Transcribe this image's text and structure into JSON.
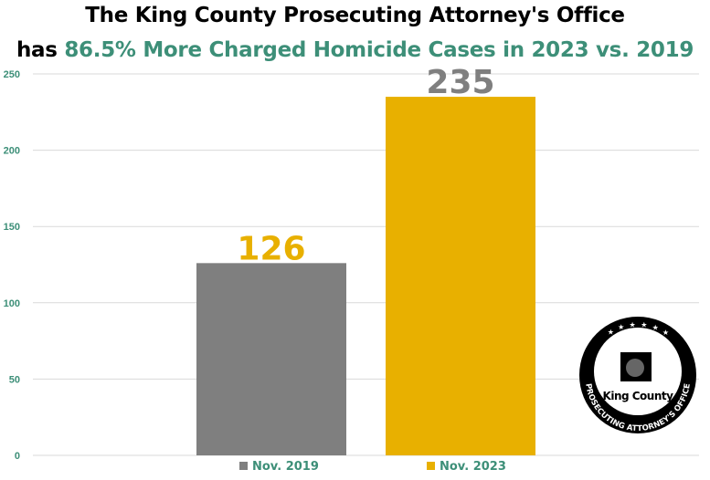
{
  "chart_data": {
    "type": "bar",
    "title_line1": "The King County Prosecuting Attorney's Office",
    "title_line2_prefix": "has ",
    "title_line2_highlight": "86.5% More Charged Homicide Cases in 2023 vs. 2019",
    "xlabel": "",
    "ylabel": "",
    "ylim": [
      0,
      250
    ],
    "yticks": [
      "0",
      "50",
      "100",
      "150",
      "200",
      "250"
    ],
    "grid": true,
    "legend_position": "bottom",
    "series": [
      {
        "name": "Nov. 2019",
        "value": 126,
        "label": "126",
        "color": "#7f7f7f",
        "label_color": "#e8b000"
      },
      {
        "name": "Nov. 2023",
        "value": 235,
        "label": "235",
        "color": "#e8b000",
        "label_color": "#7f7f7f"
      }
    ],
    "colors": {
      "accent": "#3d8f78",
      "axis_text": "#3d8f78",
      "grid": "#d9d9d9"
    }
  },
  "logo": {
    "name": "King County",
    "ring_text": "PROSECUTING ATTORNEY'S OFFICE"
  }
}
